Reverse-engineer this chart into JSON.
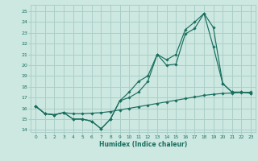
{
  "xlabel": "Humidex (Indice chaleur)",
  "bg_color": "#cce8e0",
  "grid_color": "#aacfc8",
  "line_color": "#1a6e60",
  "xlim": [
    -0.5,
    23.5
  ],
  "ylim": [
    13.8,
    25.6
  ],
  "yticks": [
    14,
    15,
    16,
    17,
    18,
    19,
    20,
    21,
    22,
    23,
    24,
    25
  ],
  "xticks": [
    0,
    1,
    2,
    3,
    4,
    5,
    6,
    7,
    8,
    9,
    10,
    11,
    12,
    13,
    14,
    15,
    16,
    17,
    18,
    19,
    20,
    21,
    22,
    23
  ],
  "line1_x": [
    0,
    1,
    2,
    3,
    4,
    5,
    6,
    7,
    8,
    9,
    10,
    11,
    12,
    13,
    14,
    15,
    16,
    17,
    18,
    19,
    20,
    21,
    22,
    23
  ],
  "line1_y": [
    16.2,
    15.5,
    15.4,
    15.6,
    15.0,
    15.0,
    14.8,
    14.1,
    15.0,
    16.7,
    17.0,
    17.5,
    18.5,
    21.0,
    20.0,
    20.1,
    22.9,
    23.4,
    24.8,
    21.7,
    18.3,
    17.5,
    17.5,
    17.4
  ],
  "line2_x": [
    0,
    1,
    2,
    3,
    4,
    5,
    6,
    7,
    8,
    9,
    10,
    11,
    12,
    13,
    14,
    15,
    16,
    17,
    18,
    19,
    20,
    21,
    22,
    23
  ],
  "line2_y": [
    16.2,
    15.5,
    15.4,
    15.6,
    15.0,
    15.0,
    14.8,
    14.1,
    15.0,
    16.7,
    17.5,
    18.5,
    19.0,
    21.0,
    20.5,
    21.0,
    23.3,
    24.0,
    24.8,
    23.5,
    18.3,
    17.5,
    17.5,
    17.4
  ],
  "line3_x": [
    0,
    1,
    2,
    3,
    4,
    5,
    6,
    7,
    8,
    9,
    10,
    11,
    12,
    13,
    14,
    15,
    16,
    17,
    18,
    19,
    20,
    21,
    22,
    23
  ],
  "line3_y": [
    16.2,
    15.5,
    15.4,
    15.6,
    15.5,
    15.5,
    15.55,
    15.6,
    15.7,
    15.85,
    16.0,
    16.15,
    16.3,
    16.45,
    16.6,
    16.75,
    16.9,
    17.05,
    17.2,
    17.3,
    17.38,
    17.42,
    17.46,
    17.5
  ]
}
